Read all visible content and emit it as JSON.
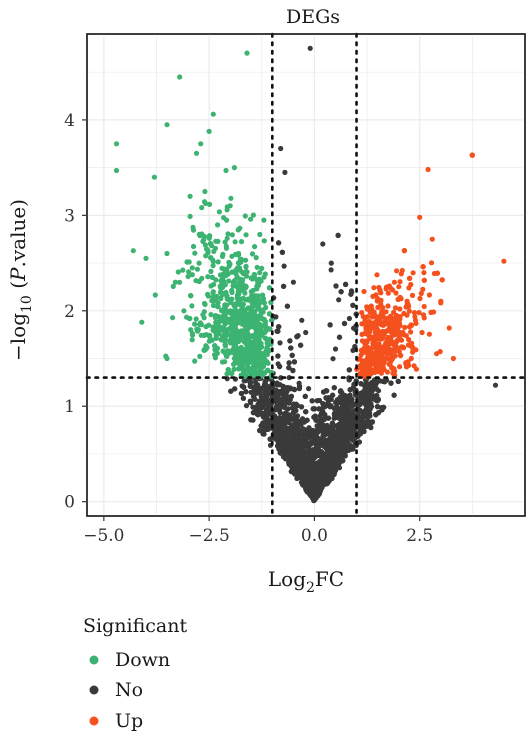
{
  "chart_data": {
    "type": "scatter",
    "title": "DEGs",
    "xlabel_parts": [
      "Log",
      "2",
      "FC"
    ],
    "ylabel_parts": [
      "−log",
      "10",
      " (",
      "P",
      ".value)"
    ],
    "xlim": [
      -5.4,
      5.0
    ],
    "ylim": [
      -0.15,
      4.9
    ],
    "x_ticks": [
      -5.0,
      -2.5,
      0.0,
      2.5
    ],
    "x_tick_labels": [
      "−5.0",
      "−2.5",
      "0.0",
      "2.5"
    ],
    "y_ticks": [
      0,
      1,
      2,
      3,
      4
    ],
    "y_tick_labels": [
      "0",
      "1",
      "2",
      "3",
      "4"
    ],
    "thresholds": {
      "logfc": [
        -1,
        1
      ],
      "pvalue_line": 1.3
    },
    "grid": true,
    "legend": {
      "title": "Significant",
      "position": "bottom",
      "entries": [
        {
          "label": "Down",
          "color": "#3cb371"
        },
        {
          "label": "No",
          "color": "#3a3a3a"
        },
        {
          "label": "Up",
          "color": "#f4511e"
        }
      ]
    },
    "series": [
      {
        "name": "Down",
        "color": "#3cb371",
        "points": [
          [
            -4.7,
            3.75
          ],
          [
            -4.7,
            3.47
          ],
          [
            -3.2,
            4.45
          ],
          [
            -1.6,
            4.7
          ],
          [
            -2.4,
            4.06
          ],
          [
            -3.5,
            3.95
          ],
          [
            -2.5,
            3.88
          ],
          [
            -3.8,
            3.4
          ],
          [
            -4.3,
            2.63
          ],
          [
            -4.0,
            2.55
          ],
          [
            -3.5,
            2.6
          ],
          [
            -4.1,
            1.88
          ],
          [
            -3.5,
            1.5
          ],
          [
            -2.1,
            3.47
          ],
          [
            -1.9,
            3.5
          ],
          [
            -2.8,
            3.65
          ],
          [
            -2.7,
            3.75
          ],
          [
            -1.2,
            2.95
          ],
          [
            -3.1,
            2.0
          ],
          [
            -2.9,
            2.45
          ],
          [
            -2.6,
            3.25
          ],
          [
            -2.3,
            2.9
          ],
          [
            -2.0,
            3.1
          ],
          [
            -1.8,
            2.6
          ],
          [
            -1.5,
            2.2
          ],
          [
            -1.3,
            2.4
          ],
          [
            -2.2,
            1.8
          ],
          [
            -1.9,
            1.5
          ],
          [
            -2.6,
            1.6
          ],
          [
            -1.4,
            1.7
          ],
          [
            -1.1,
            1.45
          ],
          [
            -2.4,
            2.2
          ],
          [
            -3.3,
            2.3
          ],
          [
            -2.0,
            2.0
          ],
          [
            -1.7,
            1.9
          ]
        ]
      },
      {
        "name": "Up",
        "color": "#f4511e",
        "points": [
          [
            2.7,
            3.48
          ],
          [
            4.5,
            2.52
          ],
          [
            2.5,
            2.98
          ],
          [
            2.8,
            2.75
          ],
          [
            3.3,
            1.5
          ],
          [
            3.2,
            1.82
          ],
          [
            1.9,
            2.3
          ],
          [
            2.2,
            2.1
          ],
          [
            2.6,
            2.4
          ],
          [
            1.5,
            1.8
          ],
          [
            1.3,
            1.6
          ],
          [
            2.0,
            1.7
          ],
          [
            1.8,
            1.45
          ],
          [
            2.4,
            1.9
          ],
          [
            1.1,
            1.4
          ],
          [
            3.0,
            2.1
          ],
          [
            2.9,
            1.55
          ],
          [
            1.6,
            2.0
          ],
          [
            2.3,
            1.5
          ],
          [
            1.2,
            1.9
          ]
        ]
      },
      {
        "name": "No",
        "color": "#3a3a3a",
        "points": [
          [
            -0.1,
            4.75
          ],
          [
            -0.8,
            3.7
          ],
          [
            -0.7,
            3.45
          ],
          [
            4.3,
            1.22
          ],
          [
            -0.5,
            2.3
          ],
          [
            0.4,
            2.5
          ],
          [
            0.2,
            2.7
          ],
          [
            -0.3,
            1.9
          ],
          [
            0.5,
            1.6
          ],
          [
            -0.6,
            1.3
          ],
          [
            0.0,
            0.4
          ],
          [
            0.3,
            0.8
          ],
          [
            -0.4,
            0.9
          ],
          [
            0.8,
            1.1
          ],
          [
            -0.9,
            1.0
          ]
        ]
      }
    ]
  }
}
